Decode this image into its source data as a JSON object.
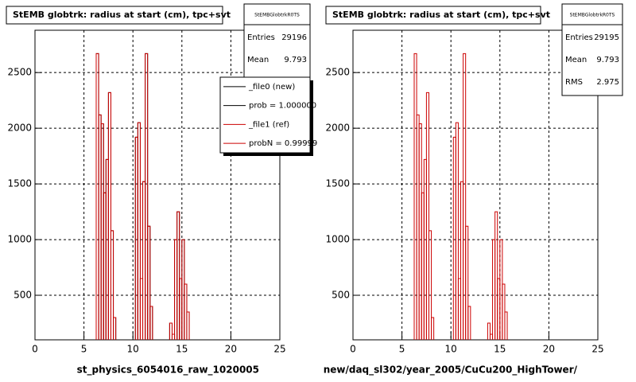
{
  "chart_data": [
    {
      "type": "histogram",
      "title": "StEMB globtrk: radius at start (cm), tpc+svt",
      "x_label": "st_physics_6054016_raw_1020005",
      "bins": [
        0,
        6.25,
        6.5,
        6.75,
        7,
        7.25,
        7.5,
        7.75,
        8,
        8.25,
        8.5,
        8.75,
        9,
        9.25,
        9.5,
        9.75,
        10,
        10.25,
        10.5,
        10.75,
        11,
        11.25,
        11.5,
        11.75,
        12,
        12.25,
        12.5,
        12.75,
        13,
        13.25,
        13.5,
        13.75,
        14,
        14.25,
        14.5,
        14.75,
        15,
        15.25,
        15.5,
        15.75,
        16,
        25
      ],
      "series": [
        {
          "name": "_file0 (new)",
          "color": "#000000",
          "values": [
            0,
            2670,
            2120,
            2040,
            1420,
            1720,
            2320,
            1080,
            300,
            0,
            0,
            0,
            0,
            0,
            0,
            0,
            0,
            1920,
            2050,
            650,
            1520,
            2670,
            1120,
            400,
            0,
            0,
            0,
            0,
            0,
            0,
            0,
            250,
            150,
            1000,
            1250,
            650,
            1000,
            600,
            350,
            0,
            0
          ]
        },
        {
          "name": "_file1 (ref)",
          "color": "#cc0000",
          "values": [
            0,
            2670,
            2120,
            2040,
            1420,
            1720,
            2320,
            1080,
            300,
            0,
            0,
            0,
            0,
            0,
            0,
            0,
            0,
            1920,
            2050,
            650,
            1520,
            2670,
            1120,
            400,
            0,
            0,
            0,
            0,
            0,
            0,
            0,
            250,
            150,
            1000,
            1250,
            650,
            1000,
            600,
            350,
            0,
            0
          ]
        }
      ],
      "legend_notes": [
        "prob = 1.000000",
        "probN = 0.99999"
      ],
      "stats_title": "StEMBGlobtrkR0TS",
      "stats": [
        {
          "label": "Entries",
          "value": 29196
        },
        {
          "label": "Mean",
          "value": 9.793
        }
      ],
      "xlim": [
        0,
        25
      ],
      "xticks": [
        0,
        5,
        10,
        15,
        20,
        25
      ],
      "ylim": [
        100,
        2880
      ],
      "yticks": [
        500,
        1000,
        1500,
        2000,
        2500
      ],
      "grid": true
    },
    {
      "type": "histogram",
      "title": "StEMB globtrk: radius at start (cm), tpc+svt",
      "x_label": "new/daq_sl302/year_2005/CuCu200_HighTower/",
      "bins": [
        0,
        6.25,
        6.5,
        6.75,
        7,
        7.25,
        7.5,
        7.75,
        8,
        8.25,
        8.5,
        8.75,
        9,
        9.25,
        9.5,
        9.75,
        10,
        10.25,
        10.5,
        10.75,
        11,
        11.25,
        11.5,
        11.75,
        12,
        12.25,
        12.5,
        12.75,
        13,
        13.25,
        13.5,
        13.75,
        14,
        14.25,
        14.5,
        14.75,
        15,
        15.25,
        15.5,
        15.75,
        16,
        25
      ],
      "values": [
        0,
        2670,
        2120,
        2040,
        1420,
        1720,
        2320,
        1080,
        300,
        0,
        0,
        0,
        0,
        0,
        0,
        0,
        0,
        1920,
        2050,
        650,
        1520,
        2670,
        1120,
        400,
        0,
        0,
        0,
        0,
        0,
        0,
        0,
        250,
        150,
        1000,
        1250,
        650,
        1000,
        600,
        350,
        0,
        0
      ],
      "color": "#cc0000",
      "stats_title": "StEMBGlobtrkR0TS",
      "stats": [
        {
          "label": "Entries",
          "value": 29195
        },
        {
          "label": "Mean",
          "value": 9.793
        },
        {
          "label": "RMS",
          "value": 2.975
        }
      ],
      "xlim": [
        0,
        25
      ],
      "xticks": [
        0,
        5,
        10,
        15,
        20,
        25
      ],
      "ylim": [
        100,
        2880
      ],
      "yticks": [
        500,
        1000,
        1500,
        2000,
        2500
      ],
      "grid": true
    }
  ]
}
